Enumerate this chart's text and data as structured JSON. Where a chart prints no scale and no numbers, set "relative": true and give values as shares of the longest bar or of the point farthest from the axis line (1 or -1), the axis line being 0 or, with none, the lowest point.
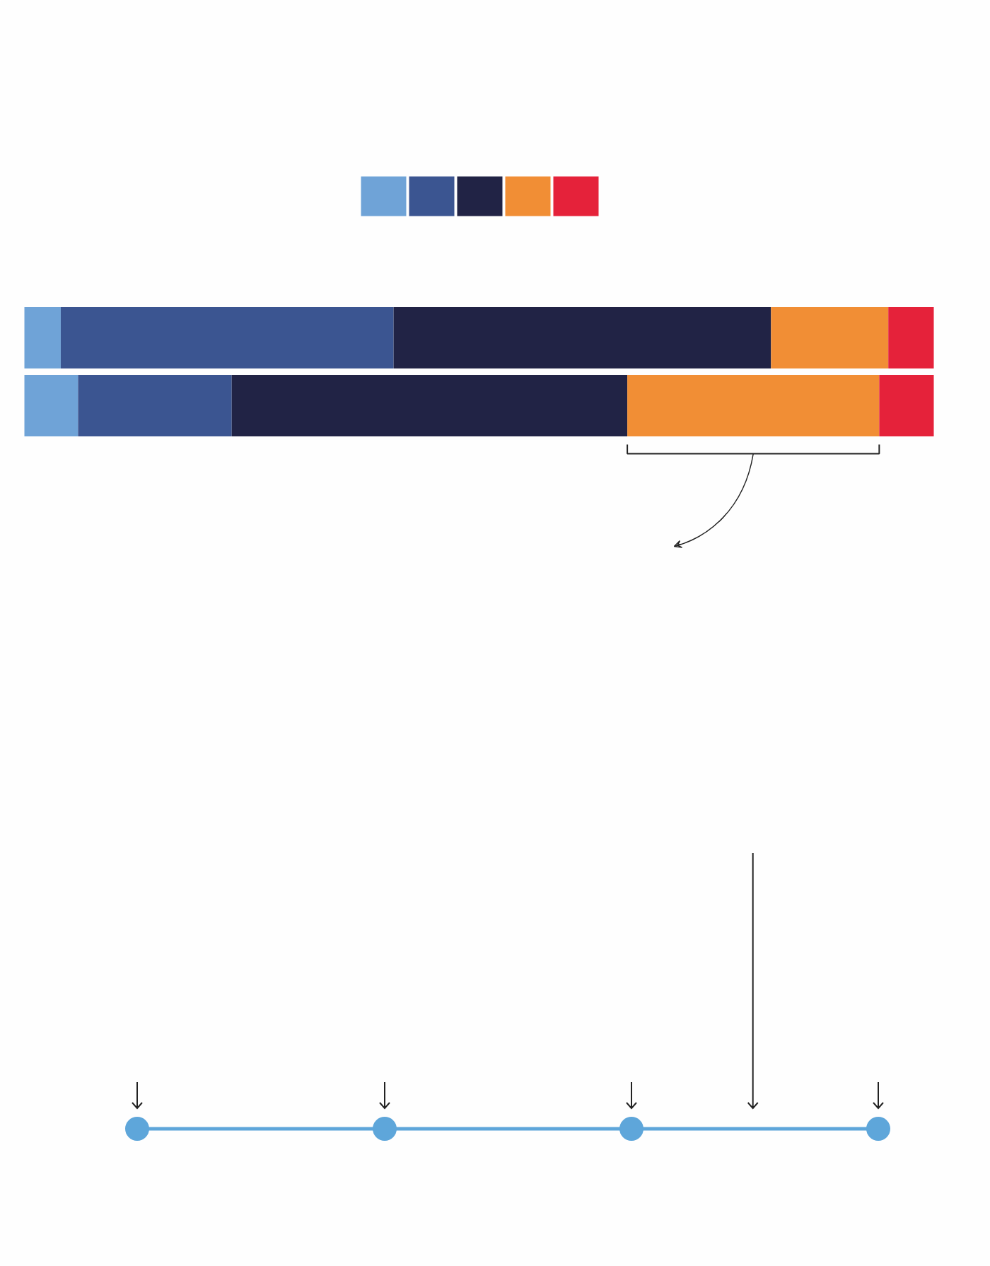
{
  "chart_data": {
    "type": "bar",
    "orientation": "horizontal",
    "stacked": true,
    "relative": true,
    "categories": [
      null,
      null
    ],
    "series": [
      {
        "color": "#6fa3d7",
        "values": [
          0.04,
          0.059
        ]
      },
      {
        "color": "#3b5591",
        "values": [
          0.366,
          0.169
        ]
      },
      {
        "color": "#212345",
        "values": [
          0.415,
          0.435
        ]
      },
      {
        "color": "#f18e35",
        "values": [
          0.129,
          0.277
        ]
      },
      {
        "color": "#e5223a",
        "values": [
          0.05,
          0.06
        ]
      }
    ]
  }
}
